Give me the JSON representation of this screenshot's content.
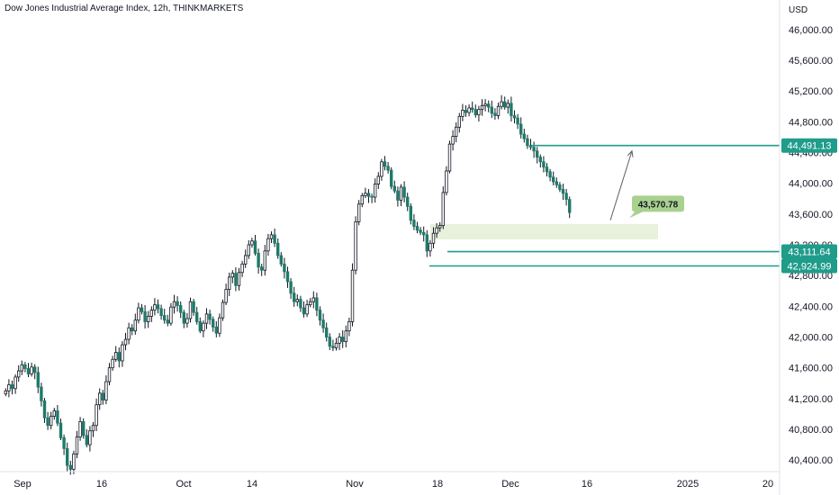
{
  "title": "Dow Jones Industrial Average Index, 12h, THINKMARKETS",
  "currency": "USD",
  "colors": {
    "up": "#ffffff",
    "down": "#1e7a6a",
    "wick": "#131722",
    "level": "#1f9c8a",
    "zone": "#e8f1dc",
    "callout": "#a9d18e",
    "arrow": "#5d606b",
    "axis_border": "#e0e3eb"
  },
  "chart_data": {
    "type": "candlestick",
    "title": "Dow Jones Industrial Average Index, 12h, THINKMARKETS",
    "xlabel": "",
    "ylabel": "",
    "ylim": [
      40250,
      46150
    ],
    "y_ticks": [
      "40,400.00",
      "40,800.00",
      "41,200.00",
      "41,600.00",
      "42,000.00",
      "42,400.00",
      "42,800.00",
      "43,200.00",
      "43,600.00",
      "44,000.00",
      "44,400.00",
      "44,800.00",
      "45,200.00",
      "45,600.00",
      "46,000.00"
    ],
    "x_ticks": [
      "Sep",
      "16",
      "Oct",
      "14",
      "Nov",
      "18",
      "Dec",
      "16",
      "2025",
      "20"
    ],
    "closes": [
      41300,
      41380,
      41330,
      41480,
      41560,
      41640,
      41590,
      41520,
      41610,
      41540,
      41350,
      41170,
      40950,
      40850,
      40970,
      41040,
      40880,
      40690,
      40550,
      40330,
      40280,
      40480,
      40700,
      40900,
      40720,
      40600,
      40780,
      40850,
      41120,
      41270,
      41180,
      41420,
      41600,
      41710,
      41800,
      41690,
      41900,
      41970,
      42120,
      42080,
      42220,
      42380,
      42330,
      42200,
      42270,
      42350,
      42420,
      42370,
      42280,
      42220,
      42180,
      42390,
      42460,
      42410,
      42320,
      42180,
      42240,
      42460,
      42320,
      42200,
      42080,
      42180,
      42300,
      42230,
      42130,
      42050,
      42250,
      42450,
      42620,
      42780,
      42830,
      42670,
      42840,
      42950,
      43060,
      43200,
      43250,
      43090,
      42910,
      42870,
      43120,
      43280,
      43330,
      43220,
      43060,
      42950,
      42850,
      42720,
      42570,
      42460,
      42490,
      42380,
      42300,
      42420,
      42460,
      42510,
      42350,
      42220,
      42120,
      42000,
      41880,
      41860,
      41920,
      42000,
      41940,
      42080,
      42200,
      42870,
      43500,
      43730,
      43840,
      43870,
      43830,
      43820,
      43990,
      44090,
      44280,
      44220,
      44170,
      43960,
      43900,
      43780,
      43950,
      43820,
      43700,
      43520,
      43440,
      43390,
      43360,
      43330,
      43120,
      43220,
      43350,
      43420,
      43450,
      43880,
      44160,
      44510,
      44610,
      44730,
      44870,
      44950,
      44920,
      44980,
      44960,
      44890,
      44960,
      45010,
      45030,
      44990,
      44910,
      44880,
      45000,
      45060,
      44990,
      45040,
      44880,
      44850,
      44770,
      44640,
      44580,
      44490,
      44470,
      44420,
      44340,
      44280,
      44210,
      44150,
      44080,
      44020,
      43980,
      43920,
      43870,
      43790,
      43620
    ],
    "levels": [
      {
        "label": "44,491.13",
        "value": 44491.13
      },
      {
        "label": "43,111.64",
        "value": 43111.64
      },
      {
        "label": "42,924.99",
        "value": 42924.99
      }
    ],
    "zone": {
      "from": 43270,
      "to": 43470
    },
    "callout": {
      "label": "43,570.78",
      "value": 43570.78
    },
    "projection": {
      "from_value": 43520,
      "to_value": 44420
    }
  }
}
